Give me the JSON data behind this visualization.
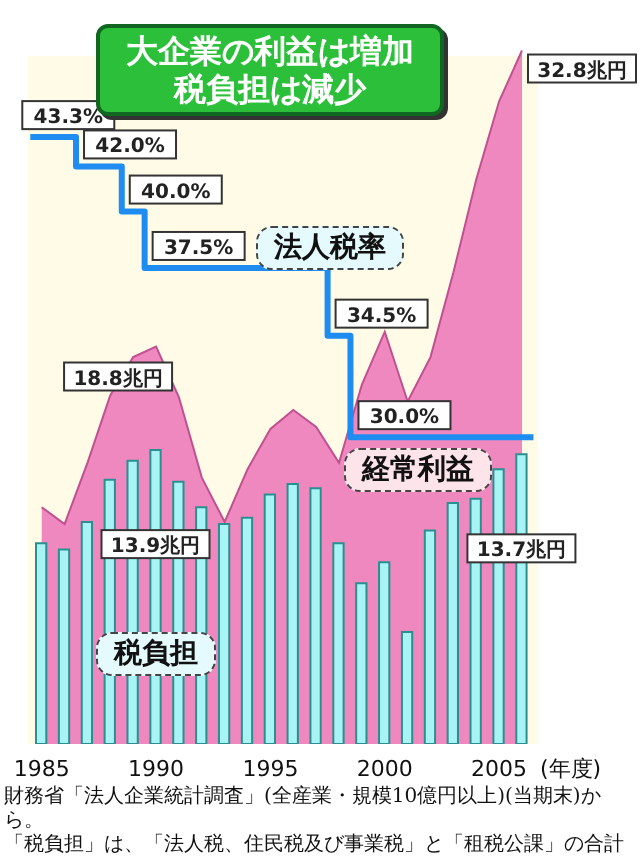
{
  "chart_data": {
    "type": "bar",
    "title": "大企業の利益は増加税負担は減少",
    "xlabel": "(年度)",
    "xlim": [
      1984.4,
      2006.7
    ],
    "xticks": [
      1985,
      1990,
      1995,
      2000,
      2005
    ],
    "ylim": [
      0,
      35
    ],
    "y2lim": [
      16.4,
      49.2
    ],
    "tick_labels": "x",
    "legend": false,
    "grid": false,
    "series": [
      {
        "name": "経常利益",
        "type": "area",
        "color": "#f088c0",
        "x": [
          1985,
          1986,
          1987,
          1988,
          1989,
          1990,
          1991,
          1992,
          1993,
          1994,
          1995,
          1996,
          1997,
          1998,
          1999,
          2000,
          2001,
          2002,
          2003,
          2004,
          2005,
          2006
        ],
        "values": [
          11.2,
          10.4,
          13.3,
          16.5,
          18.3,
          18.8,
          16.4,
          12.6,
          10.5,
          13.0,
          14.9,
          15.8,
          15.0,
          13.3,
          17.0,
          19.5,
          16.2,
          18.3,
          22.3,
          26.7,
          30.4,
          32.8
        ],
        "value_labels": [
          null,
          null,
          null,
          null,
          null,
          "18.8兆円",
          null,
          null,
          null,
          null,
          null,
          null,
          null,
          null,
          null,
          null,
          null,
          null,
          null,
          null,
          null,
          "32.8兆円"
        ]
      },
      {
        "name": "税負担",
        "color": "#a8f4f4",
        "x": [
          1985,
          1986,
          1987,
          1988,
          1989,
          1990,
          1991,
          1992,
          1993,
          1994,
          1995,
          1996,
          1997,
          1998,
          1999,
          2000,
          2001,
          2002,
          2003,
          2004,
          2005,
          2006
        ],
        "values": [
          9.5,
          9.2,
          10.5,
          12.5,
          13.4,
          13.9,
          12.4,
          11.2,
          10.4,
          10.7,
          11.8,
          12.3,
          12.1,
          9.5,
          7.6,
          8.6,
          5.3,
          10.1,
          11.4,
          11.6,
          13.0,
          13.7
        ],
        "value_labels": [
          null,
          null,
          null,
          null,
          null,
          "13.9兆円",
          null,
          null,
          null,
          null,
          null,
          null,
          null,
          null,
          null,
          null,
          null,
          null,
          null,
          null,
          null,
          "13.7兆円"
        ]
      },
      {
        "name": "法人税率",
        "type": "step",
        "axis": "y2",
        "color": "#1e8cf0",
        "x": [
          1984.5,
          1986.5,
          1988.5,
          1989.5,
          1997.5,
          1998.5,
          2006.5
        ],
        "values": [
          43.3,
          42.0,
          40.0,
          37.5,
          34.5,
          30.0,
          30.0
        ],
        "value_labels": [
          "43.3%",
          "42.0%",
          "40.0%",
          "37.5%",
          "34.5%",
          "30.0%",
          null
        ]
      }
    ],
    "annotations": [
      "財務省「法人企業統計調査」(全産業・規模10億円以上)(当期末)から。",
      "「税負担」は、「法人税、住民税及び事業税」と「租税公課」の合計"
    ]
  }
}
